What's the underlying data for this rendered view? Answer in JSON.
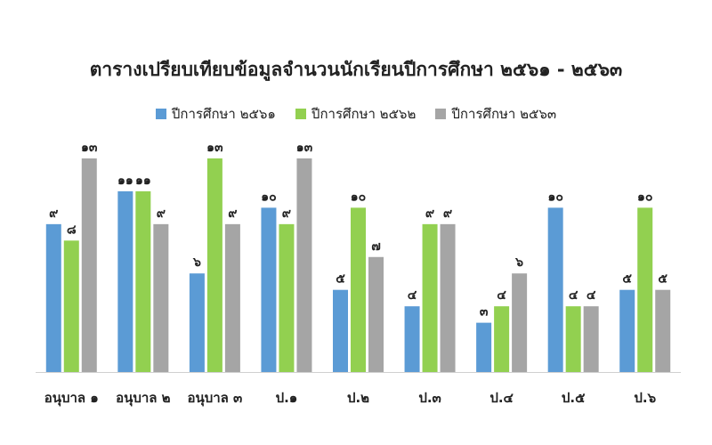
{
  "chart_data": {
    "type": "bar",
    "title": "ตารางเปรียบเทียบข้อมูลจำนวนนักเรียนปีการศึกษา ๒๕๖๑ - ๒๕๖๓",
    "categories": [
      "อนุบาล ๑",
      "อนุบาล ๒",
      "อนุบาล ๓",
      "ป.๑",
      "ป.๒",
      "ป.๓",
      "ป.๔",
      "ป.๕",
      "ป.๖"
    ],
    "series": [
      {
        "name": "ปีการศึกษา ๒๕๖๑",
        "color": "#5b9bd5",
        "values": [
          9,
          11,
          6,
          10,
          5,
          4,
          3,
          10,
          5
        ],
        "labels": [
          "๙",
          "๑๑",
          "๖",
          "๑๐",
          "๕",
          "๔",
          "๓",
          "๑๐",
          "๕"
        ]
      },
      {
        "name": "ปีการศึกษา ๒๕๖๒",
        "color": "#92d050",
        "values": [
          8,
          11,
          13,
          9,
          10,
          9,
          4,
          4,
          10
        ],
        "labels": [
          "๘",
          "๑๑",
          "๑๓",
          "๙",
          "๑๐",
          "๙",
          "๔",
          "๔",
          "๑๐"
        ]
      },
      {
        "name": "ปีการศึกษา ๒๕๖๓",
        "color": "#a5a5a5",
        "values": [
          13,
          9,
          9,
          13,
          7,
          9,
          6,
          4,
          5
        ],
        "labels": [
          "๑๓",
          "๙",
          "๙",
          "๑๓",
          "๗",
          "๙",
          "๖",
          "๔",
          "๕"
        ]
      }
    ],
    "ylim": [
      0,
      13
    ],
    "grid": false,
    "legend_position": "top-center"
  }
}
